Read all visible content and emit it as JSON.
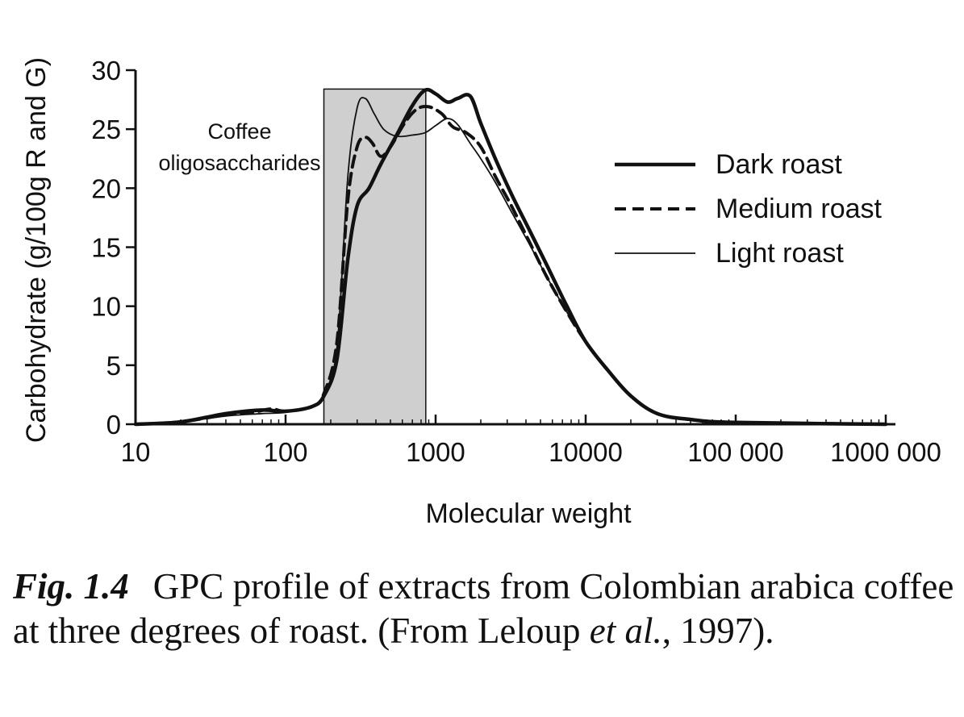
{
  "chart_data": {
    "type": "line",
    "x_scale": "log",
    "xlabel": "Molecular weight",
    "ylabel": "Carbohydrate (g/100g R and G)",
    "xlim": [
      10,
      1000000
    ],
    "ylim": [
      0,
      30
    ],
    "x_ticks": [
      10,
      100,
      1000,
      10000,
      100000,
      1000000
    ],
    "x_tick_labels": [
      "10",
      "100",
      "1000",
      "10000",
      "100 000",
      "1000 000"
    ],
    "y_ticks": [
      0,
      5,
      10,
      15,
      20,
      25,
      30
    ],
    "y_tick_labels": [
      "0",
      "5",
      "10",
      "15",
      "20",
      "25",
      "30"
    ],
    "shaded_region": {
      "x_from": 180,
      "x_to": 860,
      "y_top": 28.4,
      "label_line1": "Coffee",
      "label_line2": "oligosaccharides"
    },
    "legend": {
      "placement": "right",
      "entries": [
        "Dark roast",
        "Medium roast",
        "Light roast"
      ]
    },
    "series": [
      {
        "name": "Dark roast",
        "style": "thick-solid",
        "points": [
          [
            10,
            0
          ],
          [
            20,
            0.2
          ],
          [
            40,
            0.9
          ],
          [
            70,
            1.2
          ],
          [
            100,
            1.1
          ],
          [
            150,
            1.5
          ],
          [
            180,
            2.4
          ],
          [
            220,
            5.5
          ],
          [
            260,
            14
          ],
          [
            300,
            18.5
          ],
          [
            360,
            20
          ],
          [
            430,
            22
          ],
          [
            550,
            24.5
          ],
          [
            700,
            27
          ],
          [
            850,
            28.3
          ],
          [
            1000,
            28
          ],
          [
            1200,
            27.3
          ],
          [
            1400,
            27.6
          ],
          [
            1700,
            27.8
          ],
          [
            2000,
            25.5
          ],
          [
            2500,
            22.5
          ],
          [
            3200,
            19.5
          ],
          [
            4200,
            16.5
          ],
          [
            5500,
            13.5
          ],
          [
            7500,
            10
          ],
          [
            10000,
            7
          ],
          [
            14000,
            4.6
          ],
          [
            20000,
            2.4
          ],
          [
            30000,
            0.9
          ],
          [
            50000,
            0.4
          ],
          [
            100000,
            0.15
          ],
          [
            1000000,
            0
          ]
        ]
      },
      {
        "name": "Medium roast",
        "style": "dashed",
        "points": [
          [
            10,
            0
          ],
          [
            20,
            0.2
          ],
          [
            40,
            0.8
          ],
          [
            60,
            1.0
          ],
          [
            80,
            1.3
          ],
          [
            100,
            1.1
          ],
          [
            150,
            1.5
          ],
          [
            180,
            2.6
          ],
          [
            220,
            7
          ],
          [
            260,
            19
          ],
          [
            300,
            23.5
          ],
          [
            340,
            24.3
          ],
          [
            380,
            23.8
          ],
          [
            430,
            22.7
          ],
          [
            500,
            23.5
          ],
          [
            620,
            25.5
          ],
          [
            750,
            26.7
          ],
          [
            900,
            26.9
          ],
          [
            1100,
            26.3
          ],
          [
            1300,
            25.2
          ],
          [
            1600,
            24.7
          ],
          [
            2000,
            23.5
          ],
          [
            2500,
            21
          ],
          [
            3200,
            18.5
          ],
          [
            4200,
            15.5
          ],
          [
            5500,
            12.5
          ],
          [
            7500,
            9.5
          ],
          [
            10000,
            7
          ],
          [
            14000,
            4.6
          ],
          [
            20000,
            2.4
          ],
          [
            30000,
            0.9
          ],
          [
            50000,
            0.4
          ],
          [
            100000,
            0.15
          ],
          [
            1000000,
            0
          ]
        ]
      },
      {
        "name": "Light roast",
        "style": "thin-solid",
        "points": [
          [
            10,
            0
          ],
          [
            20,
            0.2
          ],
          [
            40,
            0.7
          ],
          [
            70,
            0.9
          ],
          [
            100,
            1.0
          ],
          [
            150,
            1.5
          ],
          [
            180,
            2.6
          ],
          [
            220,
            6.5
          ],
          [
            260,
            21
          ],
          [
            300,
            26.8
          ],
          [
            340,
            27.6
          ],
          [
            390,
            26.3
          ],
          [
            450,
            25
          ],
          [
            550,
            24.4
          ],
          [
            700,
            24.5
          ],
          [
            850,
            24.7
          ],
          [
            1000,
            25.3
          ],
          [
            1200,
            25.9
          ],
          [
            1400,
            25.4
          ],
          [
            1700,
            23.8
          ],
          [
            2000,
            22.5
          ],
          [
            2500,
            20.5
          ],
          [
            3200,
            18
          ],
          [
            4200,
            15.3
          ],
          [
            5500,
            12.5
          ],
          [
            7500,
            9.5
          ],
          [
            10000,
            7
          ],
          [
            14000,
            4.6
          ],
          [
            20000,
            2.4
          ],
          [
            30000,
            0.9
          ],
          [
            50000,
            0.4
          ],
          [
            100000,
            0.15
          ],
          [
            1000000,
            0
          ]
        ]
      }
    ]
  },
  "caption": {
    "fig_label": "Fig. 1.4",
    "text_main": "GPC profile of extracts from Colombian arabica coffee at three degrees of roast. (From Leloup ",
    "text_italic": "et al.",
    "text_end": ", 1997)."
  }
}
